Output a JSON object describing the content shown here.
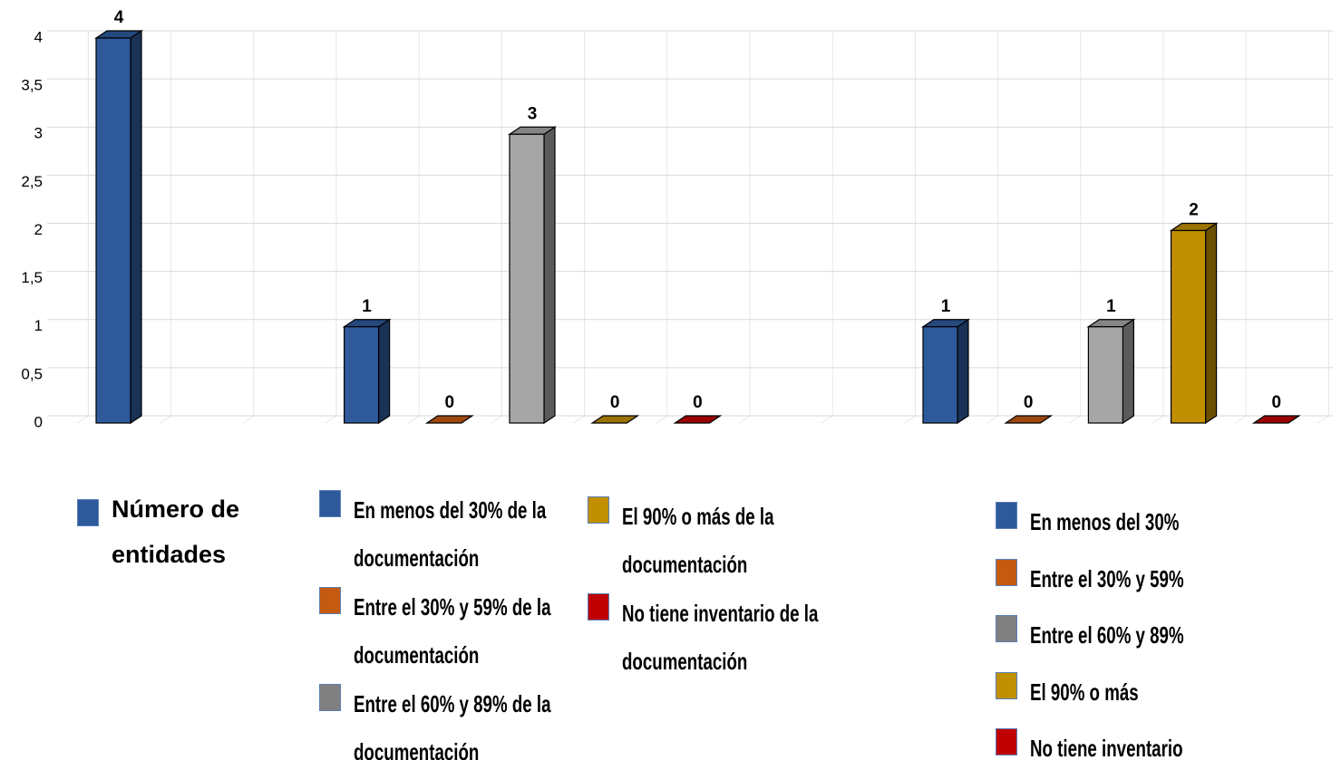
{
  "chart_data": {
    "type": "bar",
    "categories": [
      null,
      null,
      null,
      null,
      null,
      null,
      null,
      null,
      null,
      null,
      null,
      null,
      null,
      null,
      null
    ],
    "ylim": [
      0,
      4
    ],
    "yticks": [
      0,
      {
        "value": 0.5,
        "label": "0,5"
      },
      1,
      {
        "value": 1.5,
        "label": "1,5"
      },
      2,
      {
        "value": 2.5,
        "label": "2,5"
      },
      3,
      {
        "value": 3.5,
        "label": "3,5"
      },
      4
    ],
    "grid": true,
    "series": [
      {
        "name": "Número de entidades",
        "color": "#2e5a9c",
        "values": [
          4,
          null,
          null,
          null,
          null,
          null,
          null,
          null,
          null,
          null,
          null,
          null,
          null,
          null,
          null
        ]
      },
      {
        "name": "En menos del 30% de la documentación",
        "color": "#2e5a9c",
        "values": [
          null,
          null,
          null,
          1,
          null,
          null,
          null,
          null,
          null,
          null,
          null,
          null,
          null,
          null,
          null
        ]
      },
      {
        "name": "Entre el 30% y 59% de la documentación",
        "color": "#c55a11",
        "values": [
          null,
          null,
          null,
          null,
          0,
          null,
          null,
          null,
          null,
          null,
          null,
          null,
          null,
          null,
          null
        ]
      },
      {
        "name": "Entre el 60% y 89% de la documentación",
        "color": "#a6a6a6",
        "values": [
          null,
          null,
          null,
          null,
          null,
          3,
          null,
          null,
          null,
          null,
          null,
          null,
          null,
          null,
          null
        ]
      },
      {
        "name": "El 90% o más de la documentación",
        "color": "#c09000",
        "values": [
          null,
          null,
          null,
          null,
          null,
          null,
          0,
          null,
          null,
          null,
          null,
          null,
          null,
          null,
          null
        ]
      },
      {
        "name": "No tiene inventario de la documentación",
        "color": "#c00000",
        "values": [
          null,
          null,
          null,
          null,
          null,
          null,
          null,
          0,
          null,
          null,
          null,
          null,
          null,
          null,
          null
        ]
      },
      {
        "name": "En menos del 30%",
        "color": "#2e5a9c",
        "values": [
          null,
          null,
          null,
          null,
          null,
          null,
          null,
          null,
          null,
          null,
          1,
          null,
          null,
          null,
          null
        ]
      },
      {
        "name": "Entre el 30% y 59%",
        "color": "#c55a11",
        "values": [
          null,
          null,
          null,
          null,
          null,
          null,
          null,
          null,
          null,
          null,
          null,
          0,
          null,
          null,
          null
        ]
      },
      {
        "name": "Entre el 60% y 89%",
        "color": "#a6a6a6",
        "values": [
          null,
          null,
          null,
          null,
          null,
          null,
          null,
          null,
          null,
          null,
          null,
          null,
          1,
          null,
          null
        ]
      },
      {
        "name": "El 90% o más",
        "color": "#c09000",
        "values": [
          null,
          null,
          null,
          null,
          null,
          null,
          null,
          null,
          null,
          null,
          null,
          null,
          null,
          2,
          null
        ]
      },
      {
        "name": "No tiene inventario",
        "color": "#c00000",
        "values": [
          null,
          null,
          null,
          null,
          null,
          null,
          null,
          null,
          null,
          null,
          null,
          null,
          null,
          null,
          0
        ]
      }
    ]
  }
}
